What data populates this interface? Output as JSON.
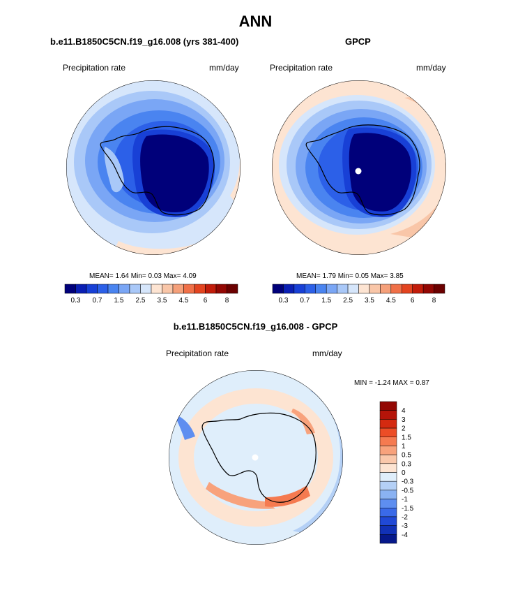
{
  "main_title": "ANN",
  "panels": [
    {
      "id": "model",
      "title": "b.e11.B1850C5CN.f19_g16.008 (yrs 381-400)",
      "variable": "Precipitation rate",
      "units": "mm/day",
      "stats": "MEAN=   1.64  Min=   0.03  Max=    4.09"
    },
    {
      "id": "obs",
      "title": "GPCP",
      "variable": "Precipitation rate",
      "units": "mm/day",
      "stats": "MEAN=   1.79  Min=    0.05  Max=   3.85"
    },
    {
      "id": "diff",
      "title": "b.e11.B1850C5CN.f19_g16.008 - GPCP",
      "variable": "Precipitation rate",
      "units": "mm/day",
      "stats": "MIN =  -1.24 MAX =   0.87"
    }
  ],
  "colorbar_main": {
    "colors": [
      "#00007a",
      "#0a1fb4",
      "#1840d6",
      "#2c60e8",
      "#4a84f0",
      "#7aa6f5",
      "#a9c8f8",
      "#d6e6fb",
      "#fde4d2",
      "#f9c6a8",
      "#f5a07a",
      "#f07048",
      "#e34420",
      "#c21c0a",
      "#930703",
      "#6b0000"
    ],
    "tick_labels": [
      "0.3",
      "0.7",
      "1.5",
      "2.5",
      "3.5",
      "4.5",
      "6",
      "8"
    ]
  },
  "colorbar_diff": {
    "colors": [
      "#930703",
      "#b51409",
      "#d42a10",
      "#ec4d26",
      "#f57a50",
      "#f8a27c",
      "#fac8ab",
      "#fde4d2",
      "#dfeefb",
      "#b4d0f6",
      "#8ab2f2",
      "#5e8ef0",
      "#3a6ae8",
      "#2049d6",
      "#1131b6",
      "#06188a"
    ],
    "labels": [
      "4",
      "3",
      "2",
      "1.5",
      "1",
      "0.5",
      "0.3",
      "0",
      "-0.3",
      "-0.5",
      "-1",
      "-1.5",
      "-2",
      "-3",
      "-4"
    ]
  }
}
